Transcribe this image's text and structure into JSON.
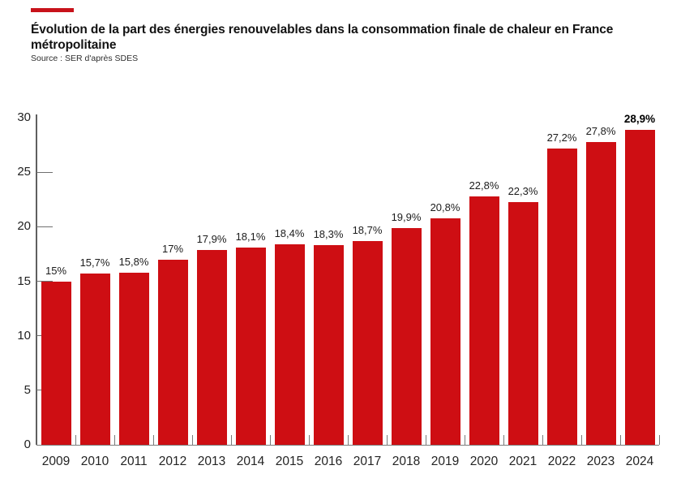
{
  "header": {
    "title_line1": "Évolution de la part des énergies renouvelables dans la consommation finale de chaleur en France",
    "title_line2": "métropolitaine",
    "source": "Source : SER d'après SDES"
  },
  "colors": {
    "bar": "#CE0E13",
    "accent_dash": "#C8121A"
  },
  "chart_data": {
    "type": "bar",
    "title": "Évolution de la part des énergies renouvelables dans la consommation finale de chaleur en France métropolitaine",
    "source": "Source : SER d'après SDES",
    "categories": [
      "2009",
      "2010",
      "2011",
      "2012",
      "2013",
      "2014",
      "2015",
      "2016",
      "2017",
      "2018",
      "2019",
      "2020",
      "2021",
      "2022",
      "2023",
      "2024"
    ],
    "values": [
      15,
      15.7,
      15.8,
      17,
      17.9,
      18.1,
      18.4,
      18.3,
      18.7,
      19.9,
      20.8,
      22.8,
      22.3,
      27.2,
      27.8,
      28.9
    ],
    "value_labels": [
      "15%",
      "15,7%",
      "15,8%",
      "17%",
      "17,9%",
      "18,1%",
      "18,4%",
      "18,3%",
      "18,7%",
      "19,9%",
      "20,8%",
      "22,8%",
      "22,3%",
      "27,2%",
      "27,8%",
      "28,9%"
    ],
    "highlight_last_value": true,
    "ylim": [
      0,
      30
    ],
    "yticks": [
      0,
      5,
      10,
      15,
      20,
      25,
      30
    ],
    "grid": false,
    "legend": false,
    "bar_color": "#CE0E13"
  }
}
